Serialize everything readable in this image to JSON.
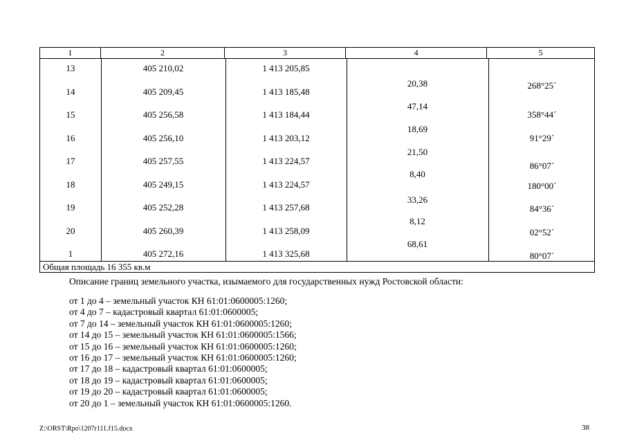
{
  "table": {
    "headers": [
      "1",
      "2",
      "3",
      "4",
      "5"
    ],
    "rows": [
      {
        "n": "13",
        "x": "405 210,02",
        "y": "1 413 205,85"
      },
      {
        "n": "14",
        "x": "405 209,45",
        "y": "1 413 185,48"
      },
      {
        "n": "15",
        "x": "405 256,58",
        "y": "1 413 184,44"
      },
      {
        "n": "16",
        "x": "405 256,10",
        "y": "1 413 203,12"
      },
      {
        "n": "17",
        "x": "405 257,55",
        "y": "1 413 224,57"
      },
      {
        "n": "18",
        "x": "405 249,15",
        "y": "1 413 224,57"
      },
      {
        "n": "19",
        "x": "405 252,28",
        "y": "1 413 257,68"
      },
      {
        "n": "20",
        "x": "405 260,39",
        "y": "1 413 258,09"
      },
      {
        "n": "1",
        "x": "405 272,16",
        "y": "1 413 325,68"
      }
    ],
    "distances": [
      "20,38",
      "47,14",
      "18,69",
      "21,50",
      "8,40",
      "33,26",
      "8,12",
      "68,61"
    ],
    "angles": [
      "268°25´",
      "358°44´",
      "91°29´",
      "86°07´",
      "180°00´",
      "84°36´",
      "02°52´",
      "80°07´"
    ],
    "total": "Общая площадь 16 355 кв.м"
  },
  "description": {
    "intro": "Описание границ земельного участка, изымаемого для государственных нужд Ростовской области:",
    "lines": [
      "от 1 до 4 – земельный участок КН 61:01:0600005:1260;",
      "от 4 до 7 – кадастровый квартал 61:01:0600005;",
      "от 7 до 14 – земельный участок КН 61:01:0600005:1260;",
      "от 14 до 15 – земельный участок КН 61:01:0600005:1566;",
      "от 15 до 16 – земельный участок КН 61:01:0600005:1260;",
      "от 16 до 17 – земельный участок КН 61:01:0600005:1260;",
      "от 17 до 18 – кадастровый квартал 61:01:0600005;",
      "от 18 до 19 – кадастровый квартал 61:01:0600005;",
      "от 19 до 20 – кадастровый квартал 61:01:0600005;",
      "от 20 до 1 – земельный участок КН 61:01:0600005:1260."
    ]
  },
  "footer": {
    "file_path": "Z:\\ORST\\Rpo\\1207r111.f15.docx",
    "page_number": "38"
  }
}
